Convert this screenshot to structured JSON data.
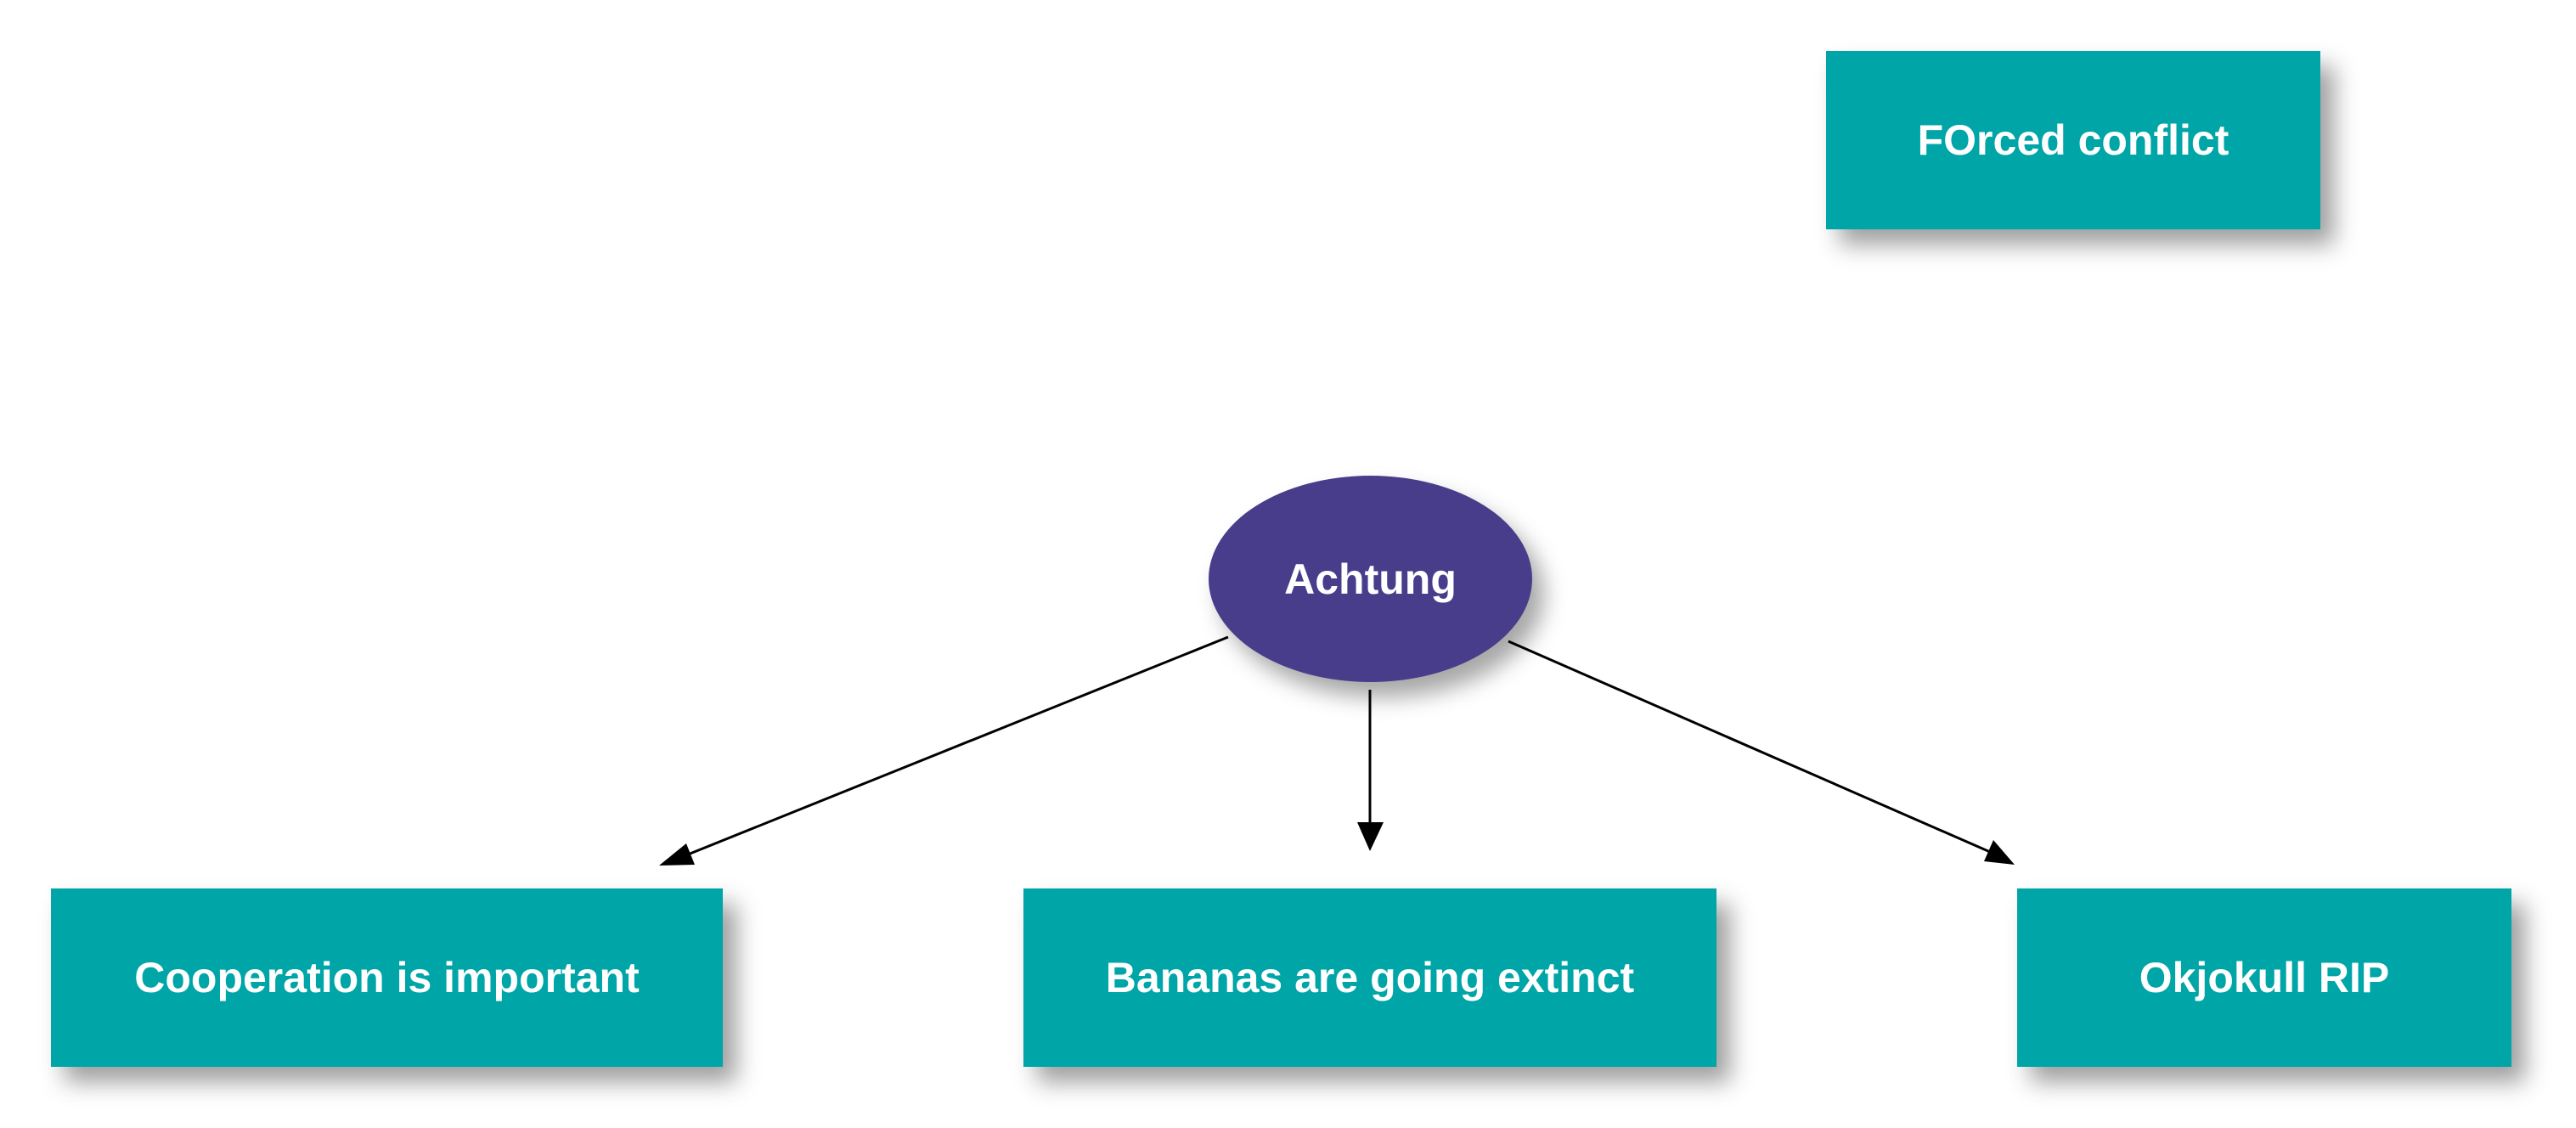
{
  "colors": {
    "box_fill": "#00a5a8",
    "center_fill": "#483d8b",
    "text": "#ffffff",
    "connector": "#000000"
  },
  "diagram": {
    "center": {
      "label": "Achtung"
    },
    "boxes": {
      "forced": {
        "label": "FOrced conflict"
      },
      "cooperation": {
        "label": "Cooperation is important"
      },
      "bananas": {
        "label": "Bananas are going extinct"
      },
      "okjokull": {
        "label": "Okjokull RIP"
      }
    },
    "connections": [
      {
        "from": "Achtung",
        "to": "Cooperation is important"
      },
      {
        "from": "Achtung",
        "to": "Bananas are going extinct"
      },
      {
        "from": "Achtung",
        "to": "Okjokull RIP"
      }
    ]
  }
}
